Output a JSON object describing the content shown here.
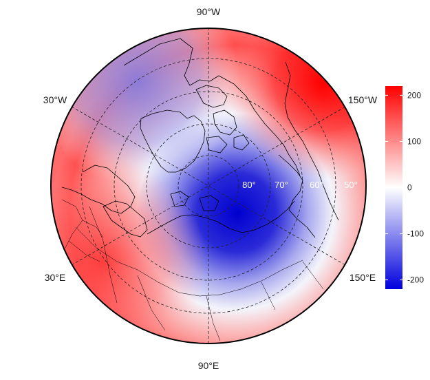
{
  "map": {
    "projection": "north-polar-stereographic",
    "lon_labels": [
      {
        "id": "lon-90w",
        "text": "90°W"
      },
      {
        "id": "lon-30w",
        "text": "30°W"
      },
      {
        "id": "lon-150w",
        "text": "150°W"
      },
      {
        "id": "lon-30e",
        "text": "30°E"
      },
      {
        "id": "lon-150e",
        "text": "150°E"
      },
      {
        "id": "lon-90e",
        "text": "90°E"
      }
    ],
    "lat_labels": [
      {
        "id": "lat-80",
        "text": "80°"
      },
      {
        "id": "lat-70",
        "text": "70°"
      },
      {
        "id": "lat-60",
        "text": "60°"
      },
      {
        "id": "lat-50",
        "text": "50°"
      }
    ],
    "colorbar": {
      "min": -220,
      "max": 220,
      "ticks": [
        "200",
        "100",
        "0",
        "-100",
        "-200"
      ],
      "tick_values": [
        200,
        100,
        0,
        -100,
        -200
      ],
      "colors": {
        "high": "#ff0000",
        "mid": "#ffffff",
        "low": "#0000dd"
      }
    },
    "colors": {
      "grid": "#222222",
      "coast": "#000000"
    }
  }
}
